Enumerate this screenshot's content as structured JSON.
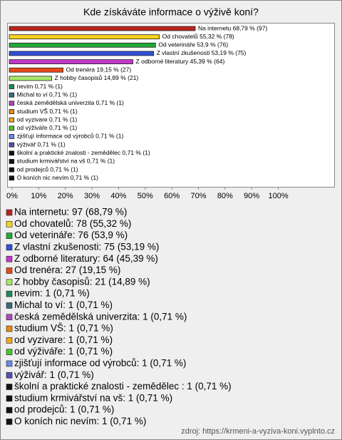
{
  "chart_data": {
    "type": "hbar",
    "title": "Kde získáváte informace o výživě koní?",
    "values": [
      68.79,
      55.32,
      53.9,
      53.19,
      45.39,
      19.15,
      14.89,
      0.71,
      0.71,
      0.71,
      0.71,
      0.71,
      0.71,
      0.71,
      0.71,
      0.71,
      0.71,
      0.71,
      0.71
    ],
    "value_labels": [
      "Na internetu 68,79 % (97)",
      "Od chovatelů 55,32 % (78)",
      "Od veterináře 53,9 % (76)",
      "Z vlastní zkušenosti 53,19 % (75)",
      "Z odborné literatury 45,39 % (64)",
      "Od trenéra 19,15 % (27)",
      "Z hobby časopisů 14,89 % (21)",
      "nevim 0,71 % (1)",
      "Michal to ví 0,71 % (1)",
      "česká zemědělská univerzita 0,71 % (1)",
      "studium VŠ 0,71 % (1)",
      "od vyzivare 0,71 % (1)",
      "od výživáře 0,71 % (1)",
      "zjišťují informace od výrobců 0,71 % (1)",
      "výživář 0,71 % (1)",
      "školní a praktické znalosti - zemědělec  0,71 % (1)",
      "studium krmivářství na vš 0,71 % (1)",
      "od prodejců 0,71 % (1)",
      "O koních nic nevím 0,71 % (1)"
    ],
    "legend_labels": [
      "Na internetu: 97 (68,79 %)",
      "Od chovatelů: 78 (55,32 %)",
      "Od veterináře: 76 (53,9 %)",
      "Z vlastní zkušenosti: 75 (53,19 %)",
      "Z odborné literatury: 64 (45,39 %)",
      "Od trenéra: 27 (19,15 %)",
      "Z hobby časopisů: 21 (14,89 %)",
      "nevim: 1 (0,71 %)",
      "Michal to ví: 1 (0,71 %)",
      "česká zemědělská univerzita: 1 (0,71 %)",
      "studium VŠ: 1 (0,71 %)",
      "od vyzivare: 1 (0,71 %)",
      "od výživáře: 1 (0,71 %)",
      "zjišťují informace od výrobců: 1 (0,71 %)",
      "výživář: 1 (0,71 %)",
      "školní a praktické znalosti - zemědělec : 1 (0,71 %)",
      "studium krmivářství na vš: 1 (0,71 %)",
      "od prodejců: 1 (0,71 %)",
      "O koních nic nevím: 1 (0,71 %)"
    ],
    "colors": [
      "#b8261e",
      "#f5d31a",
      "#22a83a",
      "#3050d8",
      "#c038c8",
      "#e84818",
      "#a8e868",
      "#1e8a5a",
      "#3a6a7a",
      "#b048c0",
      "#e88810",
      "#f0a818",
      "#48c828",
      "#6a88e8",
      "#5050b0",
      "#111111",
      "#111111",
      "#111111",
      "#111111"
    ],
    "xlim": [
      0,
      121
    ],
    "xticks": [
      {
        "value": 0,
        "label": "0%"
      },
      {
        "value": 10,
        "label": "10%"
      },
      {
        "value": 20,
        "label": "20%"
      },
      {
        "value": 30,
        "label": "30%"
      },
      {
        "value": 40,
        "label": "40%"
      },
      {
        "value": 50,
        "label": "50%"
      },
      {
        "value": 60,
        "label": "60%"
      },
      {
        "value": 70,
        "label": "70%"
      },
      {
        "value": 80,
        "label": "80%"
      },
      {
        "value": 90,
        "label": "90%"
      },
      {
        "value": 100,
        "label": "100%"
      }
    ],
    "source": "zdroj: https://krmeni-a-vyziva-koni.vyplnto.cz"
  }
}
